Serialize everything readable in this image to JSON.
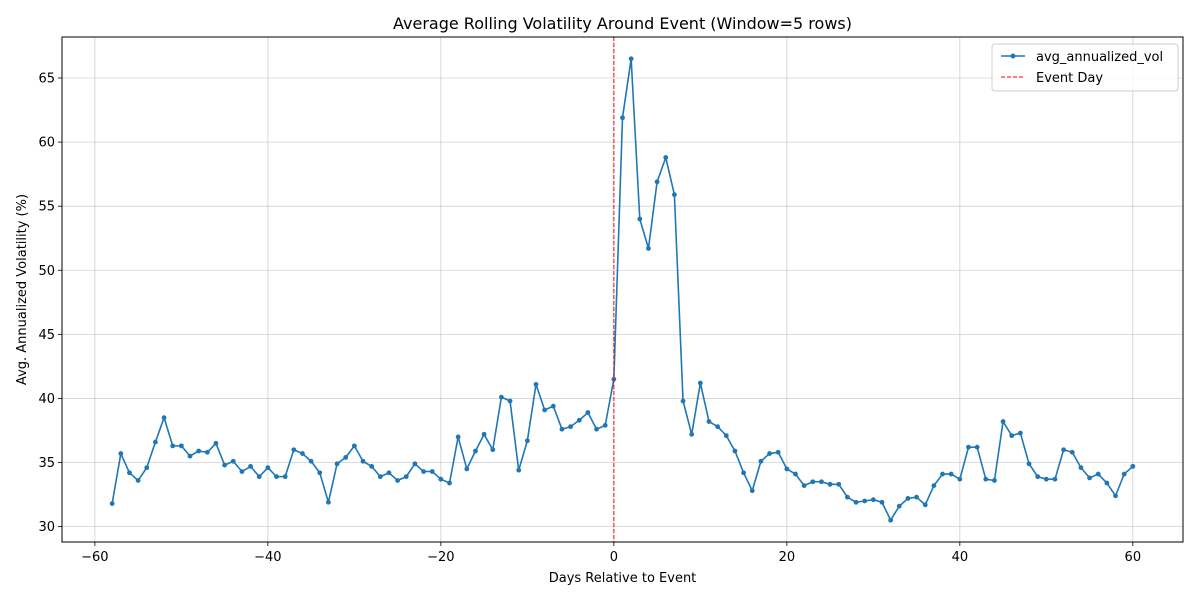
{
  "chart_data": {
    "type": "line",
    "title": "Average Rolling Volatility Around Event (Window=5 rows)",
    "xlabel": "Days Relative to Event",
    "ylabel": "Avg. Annualized Volatility (%)",
    "xlim": [
      -63.8,
      65.8
    ],
    "ylim": [
      28.8,
      68.2
    ],
    "xticks": [
      -60,
      -40,
      -20,
      0,
      20,
      40,
      60
    ],
    "yticks": [
      30,
      35,
      40,
      45,
      50,
      55,
      60,
      65
    ],
    "xtick_labels": [
      "−60",
      "−40",
      "−20",
      "0",
      "20",
      "40",
      "60"
    ],
    "ytick_labels": [
      "30",
      "35",
      "40",
      "45",
      "50",
      "55",
      "60",
      "65"
    ],
    "grid": true,
    "legend_position": "top-right",
    "series": [
      {
        "name": "avg_annualized_vol",
        "color": "#1f77b4",
        "marker": "circle",
        "x": [
          -58,
          -57,
          -56,
          -55,
          -54,
          -53,
          -52,
          -51,
          -50,
          -49,
          -48,
          -47,
          -46,
          -45,
          -44,
          -43,
          -42,
          -41,
          -40,
          -39,
          -38,
          -37,
          -36,
          -35,
          -34,
          -33,
          -32,
          -31,
          -30,
          -29,
          -28,
          -27,
          -26,
          -25,
          -24,
          -23,
          -22,
          -21,
          -20,
          -19,
          -18,
          -17,
          -16,
          -15,
          -14,
          -13,
          -12,
          -11,
          -10,
          -9,
          -8,
          -7,
          -6,
          -5,
          -4,
          -3,
          -2,
          -1,
          0,
          1,
          2,
          3,
          4,
          5,
          6,
          7,
          8,
          9,
          10,
          11,
          12,
          13,
          14,
          15,
          16,
          17,
          18,
          19,
          20,
          21,
          22,
          23,
          24,
          25,
          26,
          27,
          28,
          29,
          30,
          31,
          32,
          33,
          34,
          35,
          36,
          37,
          38,
          39,
          40,
          41,
          42,
          43,
          44,
          45,
          46,
          47,
          48,
          49,
          50,
          51,
          52,
          53,
          54,
          55,
          56,
          57,
          58,
          59,
          60
        ],
        "y": [
          31.8,
          35.7,
          34.2,
          33.6,
          34.6,
          36.6,
          38.5,
          36.3,
          36.3,
          35.5,
          35.9,
          35.8,
          36.5,
          34.8,
          35.1,
          34.3,
          34.7,
          33.9,
          34.6,
          33.9,
          33.9,
          36.0,
          35.7,
          35.1,
          34.2,
          31.9,
          34.9,
          35.4,
          36.3,
          35.1,
          34.7,
          33.9,
          34.2,
          33.6,
          33.9,
          34.9,
          34.3,
          34.3,
          33.7,
          33.4,
          37.0,
          34.5,
          35.9,
          37.2,
          36.0,
          40.1,
          39.8,
          34.4,
          36.7,
          41.1,
          39.1,
          39.4,
          37.6,
          37.8,
          38.3,
          38.9,
          37.6,
          37.9,
          41.5,
          61.9,
          66.5,
          54.0,
          51.7,
          56.9,
          58.8,
          55.9,
          39.8,
          37.2,
          41.2,
          38.2,
          37.8,
          37.1,
          35.9,
          34.2,
          32.8,
          35.1,
          35.7,
          35.8,
          34.5,
          34.1,
          33.2,
          33.5,
          33.5,
          33.3,
          33.3,
          32.3,
          31.9,
          32.0,
          32.1,
          31.9,
          30.5,
          31.6,
          32.2,
          32.3,
          31.7,
          33.2,
          34.1,
          34.1,
          33.7,
          36.2,
          36.2,
          33.7,
          33.6,
          38.2,
          37.1,
          37.3,
          34.9,
          33.9,
          33.7,
          33.7,
          36.0,
          35.8,
          34.6,
          33.8,
          34.1,
          33.4,
          32.4,
          34.1,
          34.7
        ]
      },
      {
        "name": "Event Day",
        "color": "#ff0000",
        "style": "dashed",
        "x_position": 0
      }
    ]
  }
}
